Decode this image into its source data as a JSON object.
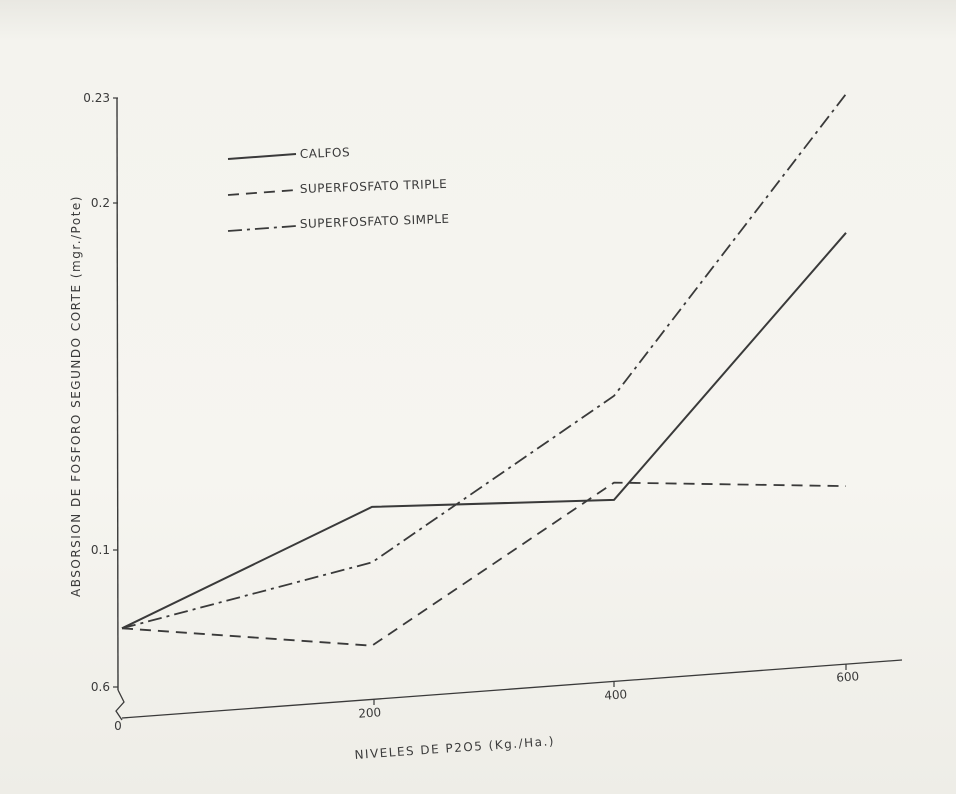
{
  "chart_data": {
    "type": "line",
    "x": [
      0,
      200,
      400,
      600
    ],
    "xlabel": "NIVELES DE P2O5 (Kg./Ha.)",
    "ylabel": "ABSORSION DE FOSFORO SEGUNDO CORTE (mgr./Pote)",
    "x_tick_labels": [
      "0",
      "200",
      "400",
      "600"
    ],
    "y_tick_labels": [
      "0.6",
      "0.1",
      "0.2",
      "0.23"
    ],
    "series": [
      {
        "name": "CALFOS",
        "style": "solid",
        "values": [
          0.078,
          0.113,
          0.115,
          0.192
        ]
      },
      {
        "name": "SUPERFOSFATO TRIPLE",
        "style": "dashed",
        "values": [
          0.078,
          0.073,
          0.12,
          0.119
        ]
      },
      {
        "name": "SUPERFOSFATO SIMPLE",
        "style": "dash-dot",
        "values": [
          0.078,
          0.097,
          0.145,
          0.232
        ]
      }
    ],
    "legend_position": "top-left",
    "grid": false
  },
  "colors": {
    "ink": "#3a3a3a",
    "paper": "#f4f3ee"
  }
}
